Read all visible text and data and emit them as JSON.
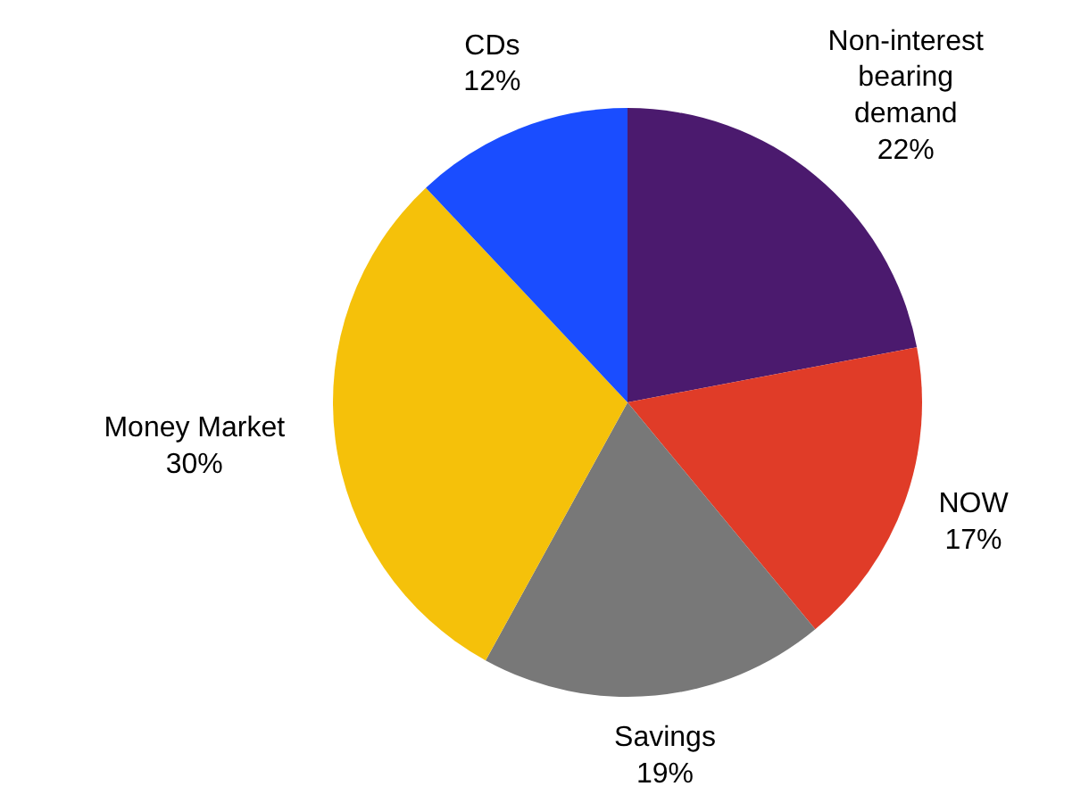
{
  "chart_data": {
    "type": "pie",
    "categories": [
      "Non-interest bearing demand",
      "NOW",
      "Savings",
      "Money Market",
      "CDs"
    ],
    "values": [
      22,
      17,
      19,
      30,
      12
    ],
    "colors": [
      "#4b1a6e",
      "#e03c28",
      "#787878",
      "#f5c10a",
      "#1a4dff"
    ],
    "value_labels": [
      "22%",
      "17%",
      "19%",
      "30%",
      "12%"
    ]
  }
}
